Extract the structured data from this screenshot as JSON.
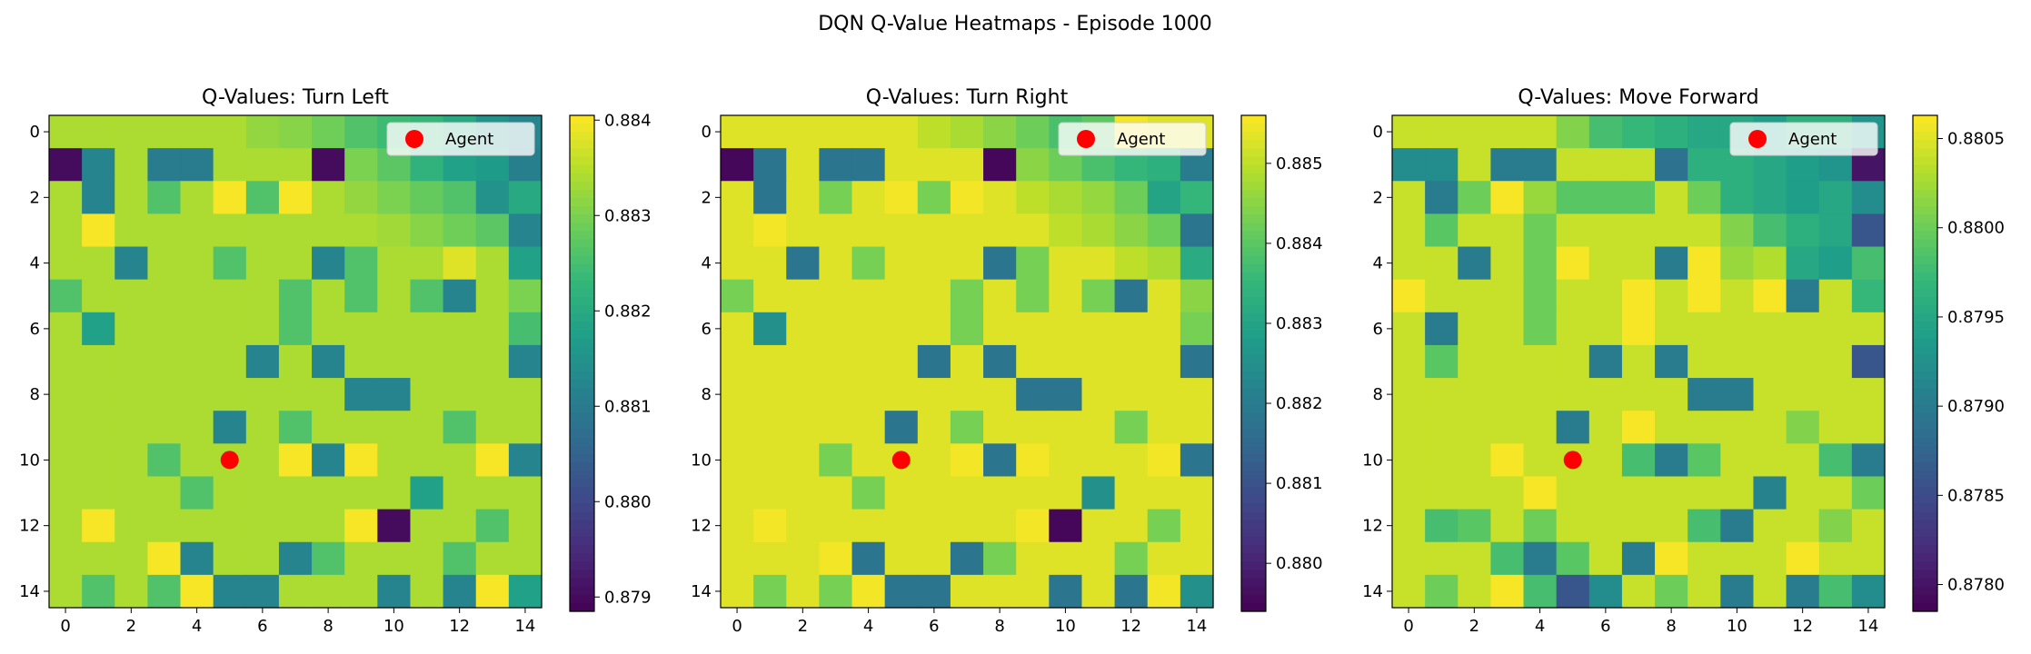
{
  "figure": {
    "suptitle": "DQN Q-Value Heatmaps - Episode 1000"
  },
  "colors": {
    "viridis": [
      "#440154",
      "#482878",
      "#3e4989",
      "#31688e",
      "#26828e",
      "#1f9e89",
      "#35b779",
      "#6ece58",
      "#b5de2b",
      "#fde725"
    ],
    "agent": "#ff0000"
  },
  "chart_data": [
    {
      "type": "heatmap",
      "title": "Q-Values: Turn Left",
      "x": [
        0,
        1,
        2,
        3,
        4,
        5,
        6,
        7,
        8,
        9,
        10,
        11,
        12,
        13,
        14
      ],
      "y": [
        0,
        1,
        2,
        3,
        4,
        5,
        6,
        7,
        8,
        9,
        10,
        11,
        12,
        13,
        14
      ],
      "xticks": [
        0,
        2,
        4,
        6,
        8,
        10,
        12,
        14
      ],
      "yticks": [
        0,
        2,
        4,
        6,
        8,
        10,
        12,
        14
      ],
      "vmin": 0.87885,
      "vmax": 0.88405,
      "colorbar_ticks": [
        0.879,
        0.88,
        0.881,
        0.882,
        0.883,
        0.884
      ],
      "colorbar_ticklabels": [
        "0.879",
        "0.880",
        "0.881",
        "0.882",
        "0.883",
        "0.884"
      ],
      "legend": {
        "label": "Agent",
        "loc": "upper right"
      },
      "agent": {
        "x": 5,
        "y": 10
      },
      "z": [
        [
          0.8834,
          0.8834,
          0.8834,
          0.8834,
          0.8834,
          0.8834,
          0.8832,
          0.8831,
          0.8829,
          0.8826,
          0.8824,
          0.8823,
          0.882,
          0.8815,
          0.8812
        ],
        [
          0.879,
          0.8812,
          0.8834,
          0.881,
          0.881,
          0.8834,
          0.8834,
          0.8834,
          0.879,
          0.883,
          0.8827,
          0.8822,
          0.8818,
          0.8817,
          0.8811
        ],
        [
          0.8834,
          0.8812,
          0.8834,
          0.8826,
          0.8834,
          0.884,
          0.8826,
          0.884,
          0.8834,
          0.8832,
          0.883,
          0.8828,
          0.8826,
          0.8815,
          0.882
        ],
        [
          0.8834,
          0.884,
          0.8834,
          0.8834,
          0.8834,
          0.8834,
          0.8834,
          0.8834,
          0.8834,
          0.8834,
          0.8833,
          0.8831,
          0.8829,
          0.8827,
          0.8812
        ],
        [
          0.8834,
          0.8834,
          0.8812,
          0.8834,
          0.8834,
          0.8826,
          0.8834,
          0.8834,
          0.8812,
          0.8826,
          0.8834,
          0.8834,
          0.8838,
          0.8834,
          0.8818
        ],
        [
          0.8826,
          0.8834,
          0.8834,
          0.8834,
          0.8834,
          0.8834,
          0.8834,
          0.8826,
          0.8834,
          0.8826,
          0.8834,
          0.8826,
          0.8812,
          0.8834,
          0.883
        ],
        [
          0.8834,
          0.8818,
          0.8834,
          0.8834,
          0.8834,
          0.8834,
          0.8834,
          0.8826,
          0.8834,
          0.8834,
          0.8834,
          0.8834,
          0.8834,
          0.8834,
          0.8825
        ],
        [
          0.8834,
          0.8834,
          0.8834,
          0.8834,
          0.8834,
          0.8834,
          0.8812,
          0.8834,
          0.8812,
          0.8834,
          0.8834,
          0.8834,
          0.8834,
          0.8834,
          0.8812
        ],
        [
          0.8834,
          0.8834,
          0.8834,
          0.8834,
          0.8834,
          0.8834,
          0.8834,
          0.8834,
          0.8834,
          0.8812,
          0.8812,
          0.8834,
          0.8834,
          0.8834,
          0.8834
        ],
        [
          0.8834,
          0.8834,
          0.8834,
          0.8834,
          0.8834,
          0.8812,
          0.8834,
          0.8826,
          0.8834,
          0.8834,
          0.8834,
          0.8834,
          0.8826,
          0.8834,
          0.8834
        ],
        [
          0.8834,
          0.8834,
          0.8834,
          0.8826,
          0.8834,
          0.8834,
          0.8834,
          0.884,
          0.8812,
          0.884,
          0.8834,
          0.8834,
          0.8834,
          0.884,
          0.8812
        ],
        [
          0.8834,
          0.8834,
          0.8834,
          0.8834,
          0.8826,
          0.8834,
          0.8834,
          0.8834,
          0.8834,
          0.8834,
          0.8834,
          0.8818,
          0.8834,
          0.8834,
          0.8834
        ],
        [
          0.8834,
          0.884,
          0.8834,
          0.8834,
          0.8834,
          0.8834,
          0.8834,
          0.8834,
          0.8834,
          0.884,
          0.879,
          0.8834,
          0.8834,
          0.8826,
          0.8834
        ],
        [
          0.8834,
          0.8834,
          0.8834,
          0.884,
          0.8812,
          0.8834,
          0.8834,
          0.8812,
          0.8826,
          0.8834,
          0.8834,
          0.8834,
          0.8826,
          0.8834,
          0.8834
        ],
        [
          0.8834,
          0.8826,
          0.8834,
          0.8826,
          0.884,
          0.8812,
          0.8812,
          0.8834,
          0.8834,
          0.8834,
          0.8812,
          0.8834,
          0.8812,
          0.884,
          0.8818
        ]
      ]
    },
    {
      "type": "heatmap",
      "title": "Q-Values: Turn Right",
      "x": [
        0,
        1,
        2,
        3,
        4,
        5,
        6,
        7,
        8,
        9,
        10,
        11,
        12,
        13,
        14
      ],
      "y": [
        0,
        1,
        2,
        3,
        4,
        5,
        6,
        7,
        8,
        9,
        10,
        11,
        12,
        13,
        14
      ],
      "xticks": [
        0,
        2,
        4,
        6,
        8,
        10,
        12,
        14
      ],
      "yticks": [
        0,
        2,
        4,
        6,
        8,
        10,
        12,
        14
      ],
      "vmin": 0.8794,
      "vmax": 0.8856,
      "colorbar_ticks": [
        0.88,
        0.881,
        0.882,
        0.883,
        0.884,
        0.885
      ],
      "colorbar_ticklabels": [
        "0.880",
        "0.881",
        "0.882",
        "0.883",
        "0.884",
        "0.885"
      ],
      "legend": {
        "label": "Agent",
        "loc": "upper right"
      },
      "agent": {
        "x": 5,
        "y": 10
      },
      "z": [
        [
          0.8853,
          0.8853,
          0.8853,
          0.8853,
          0.8853,
          0.8853,
          0.885,
          0.8848,
          0.8845,
          0.8842,
          0.8838,
          0.884,
          0.8855,
          0.8853,
          0.8853
        ],
        [
          0.8795,
          0.8818,
          0.8853,
          0.8818,
          0.8818,
          0.8853,
          0.8853,
          0.8853,
          0.8795,
          0.8845,
          0.8842,
          0.8838,
          0.8835,
          0.8833,
          0.882
        ],
        [
          0.8853,
          0.8818,
          0.8853,
          0.8843,
          0.8853,
          0.8855,
          0.8843,
          0.8855,
          0.8853,
          0.885,
          0.8848,
          0.8846,
          0.8842,
          0.883,
          0.8835
        ],
        [
          0.8853,
          0.8855,
          0.8853,
          0.8853,
          0.8853,
          0.8853,
          0.8853,
          0.8853,
          0.8853,
          0.8853,
          0.885,
          0.8848,
          0.8845,
          0.8842,
          0.8818
        ],
        [
          0.8853,
          0.8853,
          0.8818,
          0.8853,
          0.8843,
          0.8853,
          0.8853,
          0.8853,
          0.8818,
          0.8843,
          0.8853,
          0.8853,
          0.885,
          0.8848,
          0.8832
        ],
        [
          0.8843,
          0.8853,
          0.8853,
          0.8853,
          0.8853,
          0.8853,
          0.8853,
          0.8843,
          0.8853,
          0.8843,
          0.8853,
          0.8843,
          0.8818,
          0.8853,
          0.8845
        ],
        [
          0.8853,
          0.8825,
          0.8853,
          0.8853,
          0.8853,
          0.8853,
          0.8853,
          0.8843,
          0.8853,
          0.8853,
          0.8853,
          0.8853,
          0.8853,
          0.8853,
          0.8843
        ],
        [
          0.8853,
          0.8853,
          0.8853,
          0.8853,
          0.8853,
          0.8853,
          0.8818,
          0.8853,
          0.8818,
          0.8853,
          0.8853,
          0.8853,
          0.8853,
          0.8853,
          0.8818
        ],
        [
          0.8853,
          0.8853,
          0.8853,
          0.8853,
          0.8853,
          0.8853,
          0.8853,
          0.8853,
          0.8853,
          0.8818,
          0.8818,
          0.8853,
          0.8853,
          0.8853,
          0.8853
        ],
        [
          0.8853,
          0.8853,
          0.8853,
          0.8853,
          0.8853,
          0.8818,
          0.8853,
          0.8843,
          0.8853,
          0.8853,
          0.8853,
          0.8853,
          0.8843,
          0.8853,
          0.8853
        ],
        [
          0.8853,
          0.8853,
          0.8853,
          0.8843,
          0.8853,
          0.8853,
          0.8853,
          0.8855,
          0.8818,
          0.8855,
          0.8853,
          0.8853,
          0.8853,
          0.8855,
          0.8818
        ],
        [
          0.8853,
          0.8853,
          0.8853,
          0.8853,
          0.8843,
          0.8853,
          0.8853,
          0.8853,
          0.8853,
          0.8853,
          0.8853,
          0.8825,
          0.8853,
          0.8853,
          0.8853
        ],
        [
          0.8853,
          0.8855,
          0.8853,
          0.8853,
          0.8853,
          0.8853,
          0.8853,
          0.8853,
          0.8853,
          0.8855,
          0.8795,
          0.8853,
          0.8853,
          0.8843,
          0.8853
        ],
        [
          0.8853,
          0.8853,
          0.8853,
          0.8855,
          0.8818,
          0.8853,
          0.8853,
          0.8818,
          0.8843,
          0.8853,
          0.8853,
          0.8853,
          0.8843,
          0.8853,
          0.8853
        ],
        [
          0.8853,
          0.8843,
          0.8853,
          0.8843,
          0.8855,
          0.8818,
          0.8818,
          0.8853,
          0.8853,
          0.8853,
          0.8818,
          0.8853,
          0.8818,
          0.8855,
          0.8825
        ]
      ]
    },
    {
      "type": "heatmap",
      "title": "Q-Values: Move Forward",
      "x": [
        0,
        1,
        2,
        3,
        4,
        5,
        6,
        7,
        8,
        9,
        10,
        11,
        12,
        13,
        14
      ],
      "y": [
        0,
        1,
        2,
        3,
        4,
        5,
        6,
        7,
        8,
        9,
        10,
        11,
        12,
        13,
        14
      ],
      "xticks": [
        0,
        2,
        4,
        6,
        8,
        10,
        12,
        14
      ],
      "yticks": [
        0,
        2,
        4,
        6,
        8,
        10,
        12,
        14
      ],
      "vmin": 0.87785,
      "vmax": 0.88063,
      "colorbar_ticks": [
        0.878,
        0.8785,
        0.879,
        0.8795,
        0.88,
        0.8805
      ],
      "colorbar_ticklabels": [
        "0.8780",
        "0.8785",
        "0.8790",
        "0.8795",
        "0.8800",
        "0.8805"
      ],
      "legend": {
        "label": "Agent",
        "loc": "upper right"
      },
      "agent": {
        "x": 5,
        "y": 10
      },
      "z": [
        [
          0.8804,
          0.8804,
          0.8804,
          0.8804,
          0.8804,
          0.8801,
          0.8798,
          0.8797,
          0.8796,
          0.8795,
          0.8795,
          0.8794,
          0.8796,
          0.8796,
          0.8793
        ],
        [
          0.8792,
          0.8792,
          0.8804,
          0.879,
          0.879,
          0.8804,
          0.8804,
          0.8804,
          0.8789,
          0.8796,
          0.8796,
          0.8795,
          0.8794,
          0.8793,
          0.878
        ],
        [
          0.8804,
          0.879,
          0.88,
          0.8806,
          0.8802,
          0.8799,
          0.8799,
          0.8799,
          0.8804,
          0.88,
          0.8796,
          0.8795,
          0.8794,
          0.8795,
          0.8792
        ],
        [
          0.8804,
          0.8799,
          0.8804,
          0.8804,
          0.88,
          0.8804,
          0.8804,
          0.8804,
          0.8804,
          0.8804,
          0.8801,
          0.8798,
          0.8796,
          0.8795,
          0.8786
        ],
        [
          0.8804,
          0.8804,
          0.879,
          0.8804,
          0.88,
          0.8806,
          0.8804,
          0.8804,
          0.879,
          0.8806,
          0.8802,
          0.8803,
          0.8795,
          0.8794,
          0.8798
        ],
        [
          0.8806,
          0.8804,
          0.8804,
          0.8804,
          0.88,
          0.8804,
          0.8804,
          0.8806,
          0.8804,
          0.8806,
          0.8804,
          0.8806,
          0.879,
          0.8804,
          0.8797
        ],
        [
          0.8804,
          0.879,
          0.8804,
          0.8804,
          0.88,
          0.8804,
          0.8804,
          0.8806,
          0.8804,
          0.8804,
          0.8804,
          0.8804,
          0.8804,
          0.8804,
          0.8804
        ],
        [
          0.8804,
          0.8799,
          0.8804,
          0.8804,
          0.8804,
          0.8804,
          0.879,
          0.8804,
          0.879,
          0.8804,
          0.8804,
          0.8804,
          0.8804,
          0.8804,
          0.8786
        ],
        [
          0.8804,
          0.8804,
          0.8804,
          0.8804,
          0.8804,
          0.8804,
          0.8804,
          0.8804,
          0.8804,
          0.879,
          0.879,
          0.8804,
          0.8804,
          0.8804,
          0.8804
        ],
        [
          0.8804,
          0.8804,
          0.8804,
          0.8804,
          0.8804,
          0.879,
          0.8804,
          0.8806,
          0.8804,
          0.8804,
          0.8804,
          0.8804,
          0.8801,
          0.8804,
          0.8804
        ],
        [
          0.8804,
          0.8804,
          0.8804,
          0.8806,
          0.8804,
          0.8804,
          0.8804,
          0.8798,
          0.879,
          0.8799,
          0.8804,
          0.8804,
          0.8804,
          0.8798,
          0.879
        ],
        [
          0.8804,
          0.8804,
          0.8804,
          0.8804,
          0.8806,
          0.8804,
          0.8804,
          0.8804,
          0.8804,
          0.8804,
          0.8804,
          0.8791,
          0.8804,
          0.8804,
          0.88
        ],
        [
          0.8804,
          0.8798,
          0.8799,
          0.8804,
          0.88,
          0.8804,
          0.8804,
          0.8804,
          0.8804,
          0.8798,
          0.879,
          0.8804,
          0.8804,
          0.8801,
          0.8804
        ],
        [
          0.8804,
          0.8804,
          0.8804,
          0.8798,
          0.879,
          0.8799,
          0.8804,
          0.879,
          0.8806,
          0.8804,
          0.8804,
          0.8804,
          0.8806,
          0.8804,
          0.8804
        ],
        [
          0.8804,
          0.88,
          0.8804,
          0.8806,
          0.8798,
          0.8786,
          0.8792,
          0.8804,
          0.88,
          0.8804,
          0.879,
          0.8804,
          0.879,
          0.8798,
          0.8792
        ]
      ]
    }
  ]
}
